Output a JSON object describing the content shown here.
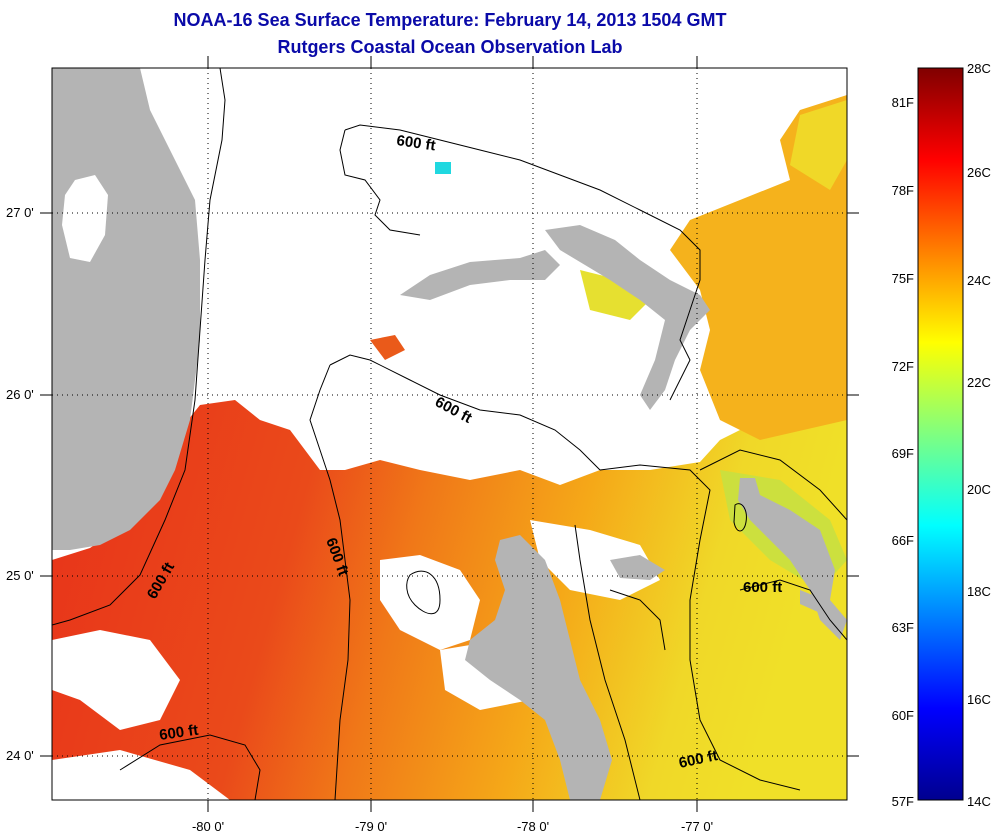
{
  "title": "NOAA-16 Sea Surface Temperature:  February 14, 2013 1504 GMT",
  "subtitle": "Rutgers Coastal Ocean Observation Lab",
  "colors": {
    "land": "#b4b4b4",
    "cloud": "#ffffff",
    "warm_red": "#e8321a",
    "orange": "#f07818",
    "amber": "#f5a818",
    "yellow": "#f0e028",
    "light_green": "#b8e040",
    "cyan": "#20e0e0",
    "title": "#0a0aa8"
  },
  "map": {
    "lat_ticks": [
      "27 0'",
      "26 0'",
      "25 0'",
      "24 0'"
    ],
    "lon_ticks": [
      "-80 0'",
      "-79 0'",
      "-78 0'",
      "-77 0'"
    ],
    "contour_label": "600 ft"
  },
  "colorbar": {
    "celsius": [
      "28C",
      "26C",
      "24C",
      "22C",
      "20C",
      "18C",
      "16C",
      "14C"
    ],
    "fahrenheit": [
      "81F",
      "78F",
      "75F",
      "72F",
      "69F",
      "66F",
      "63F",
      "60F",
      "57F"
    ]
  }
}
